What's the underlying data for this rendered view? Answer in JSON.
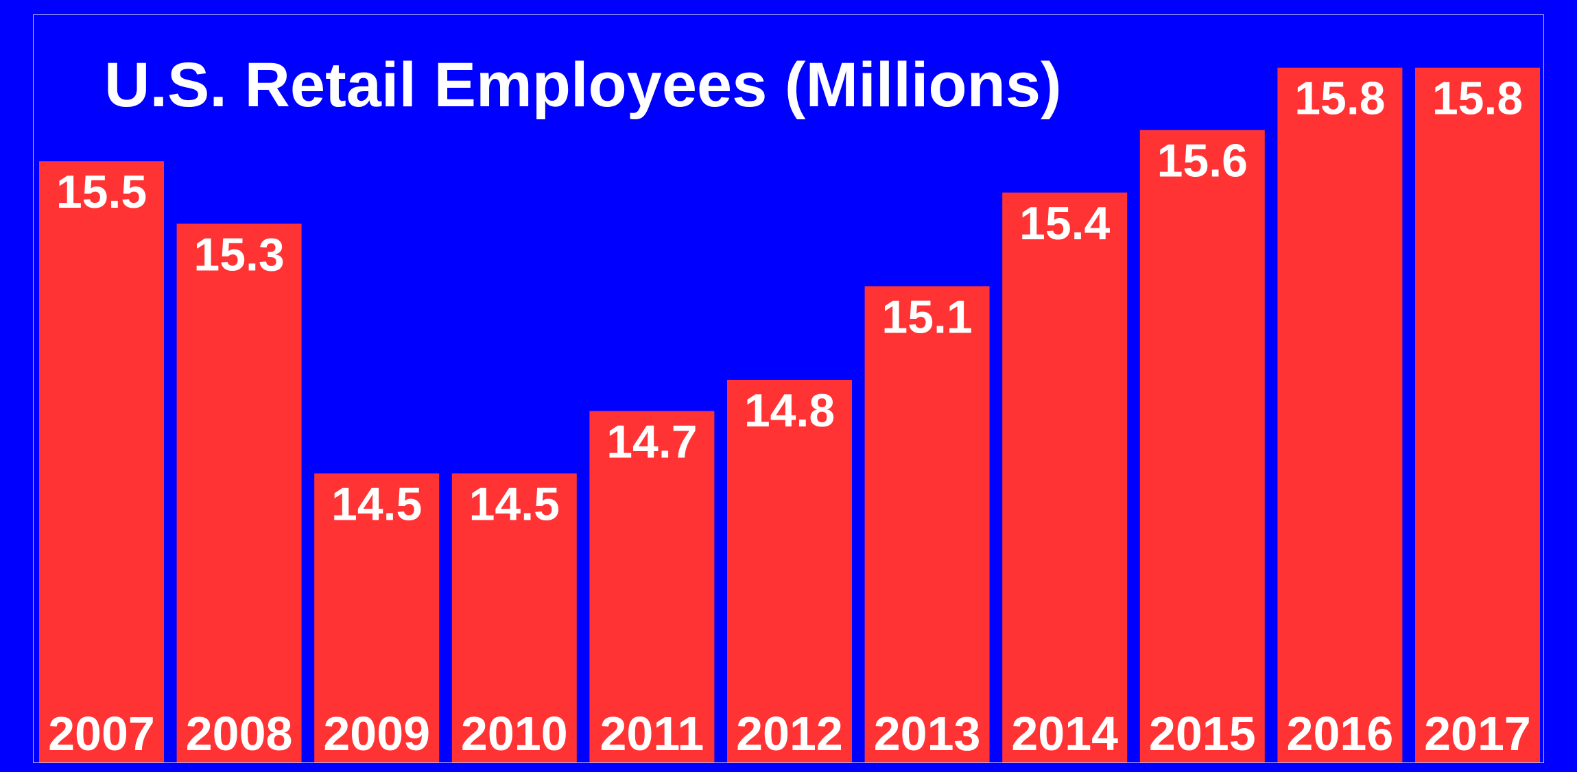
{
  "chart_data": {
    "type": "bar",
    "title": "U.S. Retail Employees (Millions)",
    "categories": [
      "2007",
      "2008",
      "2009",
      "2010",
      "2011",
      "2012",
      "2013",
      "2014",
      "2015",
      "2016",
      "2017"
    ],
    "values": [
      15.5,
      15.3,
      14.5,
      14.5,
      14.7,
      14.8,
      15.1,
      15.4,
      15.6,
      15.8,
      15.8
    ],
    "value_labels": [
      "15.5",
      "15.3",
      "14.5",
      "14.5",
      "14.7",
      "14.8",
      "15.1",
      "15.4",
      "15.6",
      "15.8",
      "15.8"
    ],
    "xlabel": "",
    "ylabel": "",
    "grid": false,
    "legend": "none",
    "colors": {
      "background": "#0000ff",
      "bar": "#ff3333",
      "text": "#ffffff"
    }
  }
}
